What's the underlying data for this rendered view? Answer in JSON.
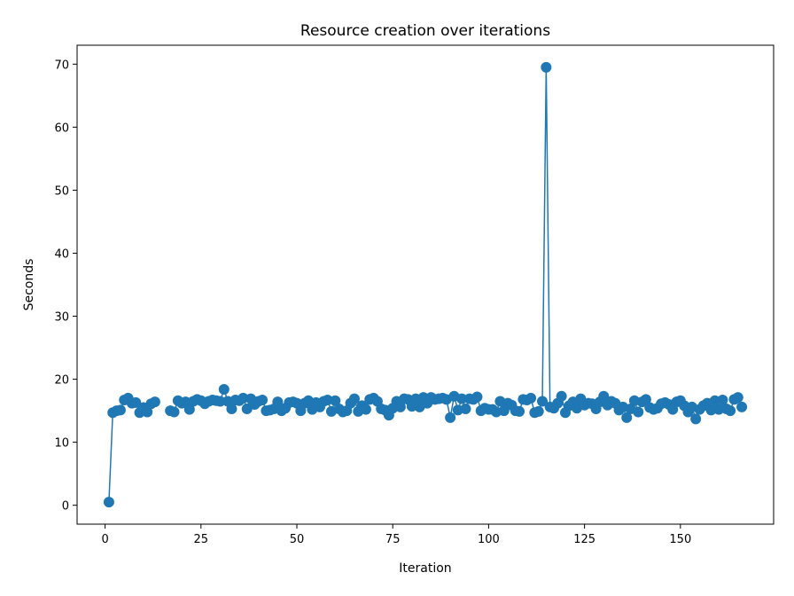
{
  "chart_data": {
    "type": "line",
    "title": "Resource creation over iterations",
    "xlabel": "Iteration",
    "ylabel": "Seconds",
    "xlim": [
      -7.3,
      174.3
    ],
    "ylim": [
      -3.0,
      73.0
    ],
    "xticks": [
      0,
      25,
      50,
      75,
      100,
      125,
      150
    ],
    "yticks": [
      0,
      10,
      20,
      30,
      40,
      50,
      60,
      70
    ],
    "grid": false,
    "legend": "none",
    "color": "#1f77b4",
    "series": [
      {
        "marker": "circle",
        "x": [
          1,
          2,
          3,
          4,
          5,
          6,
          7,
          8,
          9,
          10,
          11,
          12,
          13,
          14,
          15,
          16,
          17,
          18,
          19,
          20,
          21,
          22,
          23,
          24,
          25,
          26,
          27,
          28,
          29,
          30,
          31,
          32,
          33,
          34,
          35,
          36,
          37,
          38,
          39,
          40,
          41,
          42,
          43,
          44,
          45,
          46,
          47,
          48,
          49,
          50,
          51,
          52,
          53,
          54,
          55,
          56,
          57,
          58,
          59,
          60,
          61,
          62,
          63,
          64,
          65,
          66,
          67,
          68,
          69,
          70,
          71,
          72,
          73,
          74,
          75,
          76,
          77,
          78,
          79,
          80,
          81,
          82,
          83,
          84,
          85,
          86,
          87,
          88,
          89,
          90,
          91,
          92,
          93,
          94,
          95,
          96,
          97,
          98,
          99,
          100,
          101,
          102,
          103,
          104,
          105,
          106,
          107,
          108,
          109,
          110,
          111,
          112,
          113,
          114,
          115,
          116,
          117,
          118,
          119,
          120,
          121,
          122,
          123,
          124,
          125,
          126,
          127,
          128,
          129,
          130,
          131,
          132,
          133,
          134,
          135,
          136,
          137,
          138,
          139,
          140,
          141,
          142,
          143,
          144,
          145,
          146,
          147,
          148,
          149,
          150,
          151,
          152,
          153,
          154,
          155,
          156,
          157,
          158,
          159,
          160,
          161,
          162,
          163,
          164,
          165,
          166
        ],
        "y": [
          0.5,
          14.7,
          15.0,
          15.1,
          16.7,
          17.0,
          16.2,
          16.3,
          14.7,
          15.5,
          14.8,
          16.1,
          16.4,
          null,
          null,
          null,
          15.0,
          14.8,
          16.6,
          16.2,
          16.4,
          15.2,
          16.5,
          16.8,
          16.6,
          16.1,
          16.5,
          16.7,
          16.6,
          16.5,
          18.4,
          16.5,
          15.3,
          16.7,
          16.6,
          17.0,
          15.3,
          16.9,
          16.0,
          16.5,
          16.7,
          15.0,
          15.1,
          15.3,
          16.4,
          15.0,
          15.4,
          16.3,
          16.4,
          16.2,
          15.0,
          16.2,
          16.6,
          15.2,
          16.3,
          15.6,
          16.5,
          16.7,
          14.9,
          16.6,
          15.3,
          14.8,
          15.0,
          16.2,
          16.9,
          14.9,
          15.8,
          15.2,
          16.8,
          17.0,
          16.5,
          15.3,
          15.1,
          14.3,
          15.4,
          16.5,
          15.6,
          16.9,
          16.8,
          15.7,
          16.9,
          15.6,
          17.1,
          16.2,
          17.1,
          16.8,
          16.9,
          17.0,
          16.8,
          13.9,
          17.3,
          15.1,
          16.9,
          15.3,
          16.9,
          16.8,
          17.2,
          15.0,
          15.4,
          15.2,
          15.2,
          14.8,
          16.5,
          15.0,
          16.2,
          15.9,
          15.0,
          14.9,
          16.8,
          16.7,
          17.0,
          14.7,
          14.9,
          16.5,
          69.5,
          15.6,
          15.4,
          16.2,
          17.3,
          14.7,
          15.8,
          16.4,
          15.4,
          16.9,
          15.9,
          16.2,
          16.1,
          15.3,
          16.4,
          17.3,
          15.9,
          16.5,
          16.2,
          15.1,
          15.6,
          13.9,
          15.3,
          16.6,
          14.8,
          16.4,
          16.8,
          15.5,
          15.2,
          15.4,
          16.1,
          16.3,
          16.0,
          15.2,
          16.4,
          16.6,
          15.8,
          14.8,
          15.6,
          13.7,
          15.2,
          15.8,
          16.2,
          15.1,
          16.6,
          15.2,
          16.7,
          15.3,
          15.0,
          16.8,
          17.1,
          15.6
        ]
      }
    ]
  }
}
